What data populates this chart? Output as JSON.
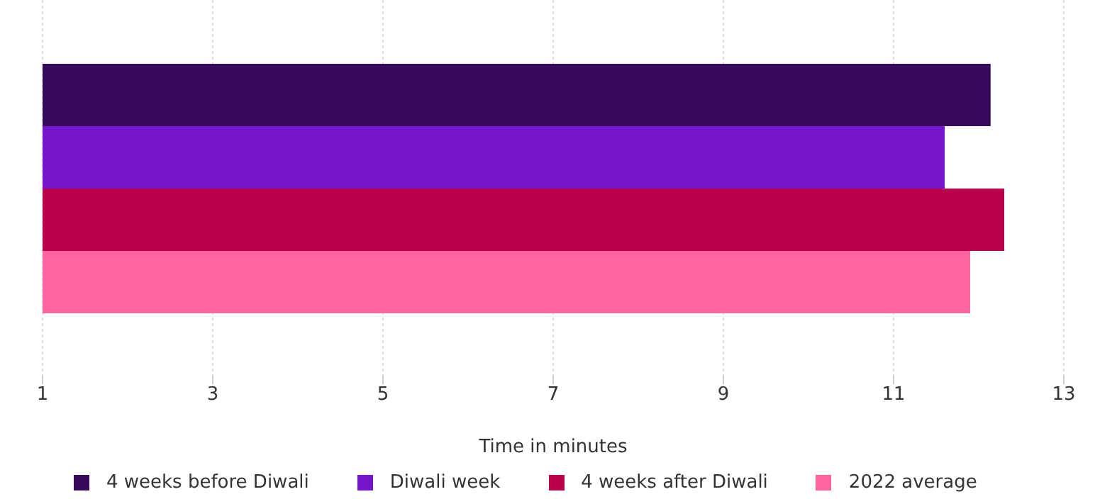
{
  "chart_data": {
    "type": "bar",
    "orientation": "horizontal",
    "categories": [
      null
    ],
    "xlabel": "Time in minutes",
    "series": [
      {
        "name": "4 weeks before Diwali",
        "color": "#370a60",
        "values": [
          12.14
        ]
      },
      {
        "name": "Diwali week",
        "color": "#7515cc",
        "values": [
          11.6
        ]
      },
      {
        "name": "4 weeks after Diwali",
        "color": "#bb004b",
        "values": [
          12.3
        ]
      },
      {
        "name": "2022 average",
        "color": "#fe65a0",
        "values": [
          11.9
        ]
      }
    ],
    "xlim": [
      1,
      13
    ],
    "xticks": [
      1,
      3,
      5,
      7,
      9,
      11,
      13
    ],
    "grid": "x",
    "legend": "bottom"
  }
}
